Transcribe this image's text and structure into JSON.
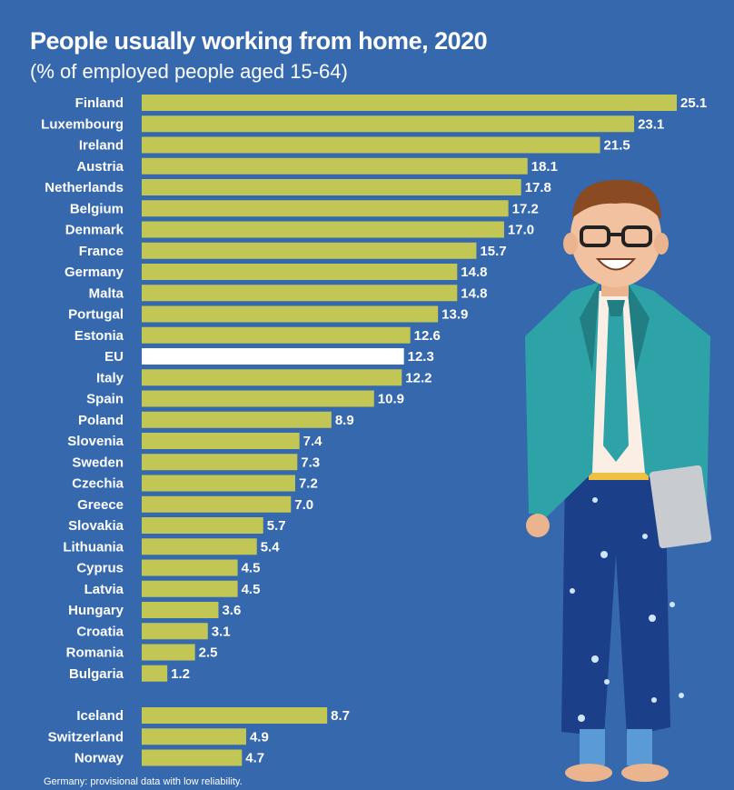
{
  "title": "People usually working from home, 2020",
  "subtitle": "(% of employed people aged 15-64)",
  "footnote": "Germany: provisional data with low reliability.",
  "colors": {
    "background": "#3568ac",
    "bar": "#c2c655",
    "highlight_bar": "#ffffff",
    "text": "#ffffff"
  },
  "illustration": "person-with-laptop-illustration",
  "chart_data": {
    "type": "bar",
    "orientation": "horizontal",
    "categories": [
      "Finland",
      "Luxembourg",
      "Ireland",
      "Austria",
      "Netherlands",
      "Belgium",
      "Denmark",
      "France",
      "Germany",
      "Malta",
      "Portugal",
      "Estonia",
      "EU",
      "Italy",
      "Spain",
      "Poland",
      "Slovenia",
      "Sweden",
      "Czechia",
      "Greece",
      "Slovakia",
      "Lithuania",
      "Cyprus",
      "Latvia",
      "Hungary",
      "Croatia",
      "Romania",
      "Bulgaria",
      "Iceland",
      "Switzerland",
      "Norway"
    ],
    "values": [
      25.1,
      23.1,
      21.5,
      18.1,
      17.8,
      17.2,
      17.0,
      15.7,
      14.8,
      14.8,
      13.9,
      12.6,
      12.3,
      12.2,
      10.9,
      8.9,
      7.4,
      7.3,
      7.2,
      7.0,
      5.7,
      5.4,
      4.5,
      4.5,
      3.6,
      3.1,
      2.5,
      1.2,
      8.7,
      4.9,
      4.7
    ],
    "value_labels": [
      "25.1",
      "23.1",
      "21.5",
      "18.1",
      "17.8",
      "17.2",
      "17.0",
      "15.7",
      "14.8",
      "14.8",
      "13.9",
      "12.6",
      "12.3",
      "12.2",
      "10.9",
      "8.9",
      "7.4",
      "7.3",
      "7.2",
      "7.0",
      "5.7",
      "5.4",
      "4.5",
      "4.5",
      "3.6",
      "3.1",
      "2.5",
      "1.2",
      "8.7",
      "4.9",
      "4.7"
    ],
    "highlight": "EU",
    "group_gap_before": "Iceland",
    "xlim": [
      0,
      25.1
    ],
    "grid": false
  }
}
